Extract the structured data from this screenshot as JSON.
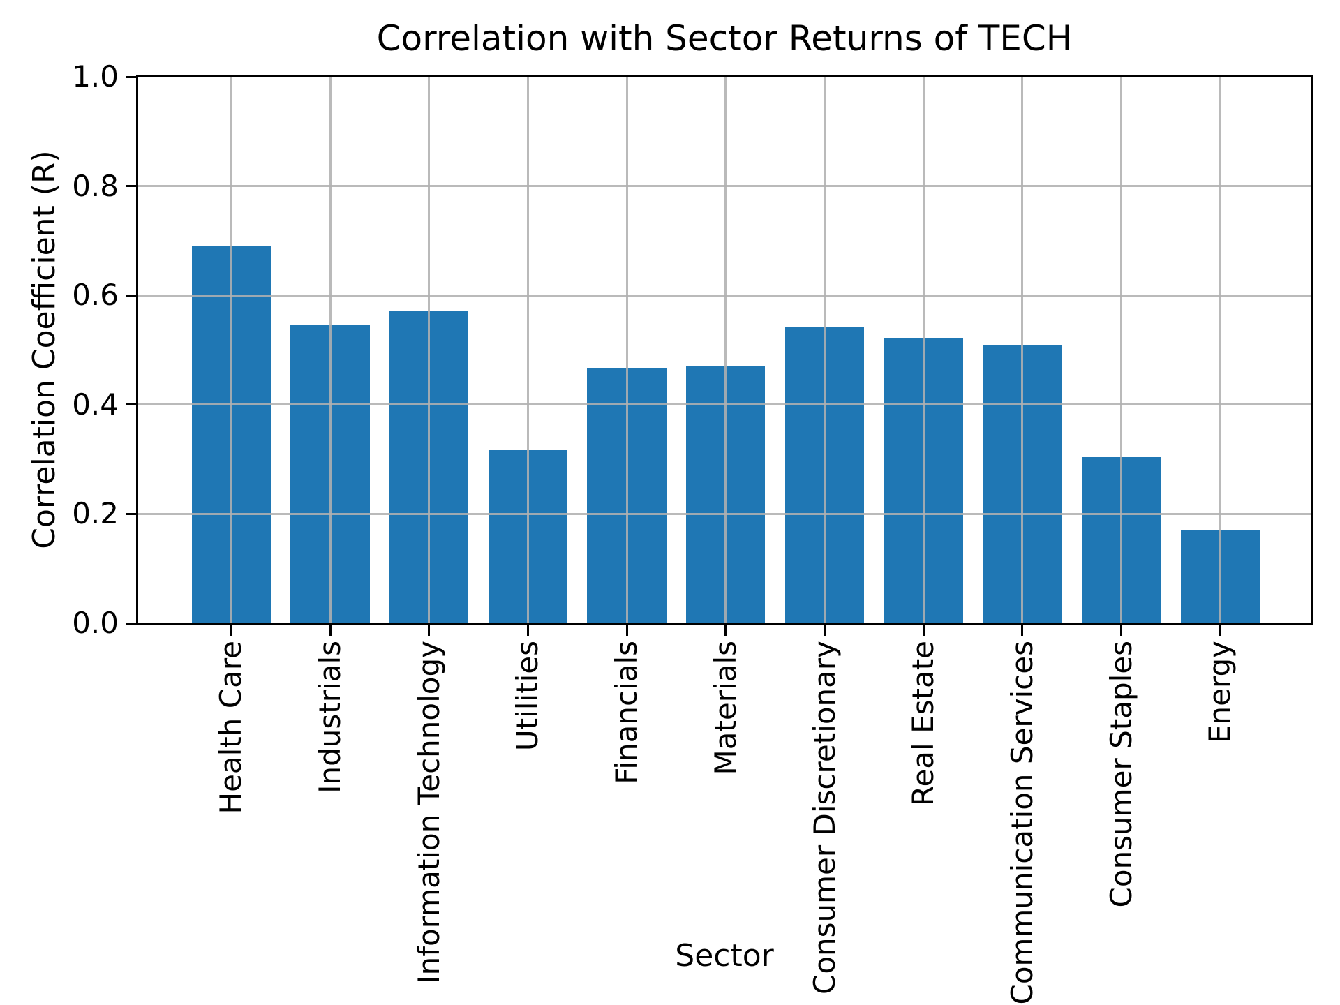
{
  "figure": {
    "background": "#ffffff",
    "text_color": "#000000"
  },
  "chart_data": {
    "type": "bar",
    "title": "Correlation with Sector Returns of TECH",
    "xlabel": "Sector",
    "ylabel": "Correlation Coefficient (R)",
    "categories": [
      "Health Care",
      "Industrials",
      "Information Technology",
      "Utilities",
      "Financials",
      "Materials",
      "Consumer Discretionary",
      "Real Estate",
      "Communication Services",
      "Consumer Staples",
      "Energy"
    ],
    "values": [
      0.69,
      0.545,
      0.572,
      0.317,
      0.466,
      0.471,
      0.543,
      0.521,
      0.51,
      0.304,
      0.17
    ],
    "ylim": [
      0.0,
      1.0
    ],
    "yticks": [
      0.0,
      0.2,
      0.4,
      0.6,
      0.8,
      1.0
    ],
    "ytick_labels": [
      "0.0",
      "0.2",
      "0.4",
      "0.6",
      "0.8",
      "1.0"
    ],
    "xtick_rotation_degrees": 90,
    "grid": true,
    "legend_visible": false,
    "bar_color": "#1f77b4",
    "grid_color": "#b0b0b0",
    "axis_color": "#000000"
  }
}
